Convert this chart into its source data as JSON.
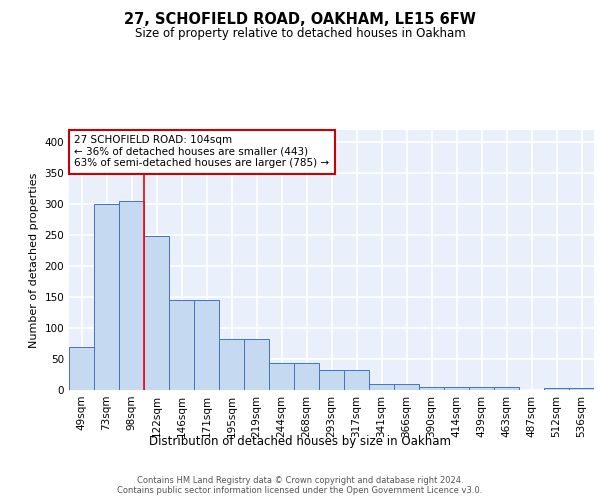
{
  "title1": "27, SCHOFIELD ROAD, OAKHAM, LE15 6FW",
  "title2": "Size of property relative to detached houses in Oakham",
  "xlabel": "Distribution of detached houses by size in Oakham",
  "ylabel": "Number of detached properties",
  "categories": [
    "49sqm",
    "73sqm",
    "98sqm",
    "122sqm",
    "146sqm",
    "171sqm",
    "195sqm",
    "219sqm",
    "244sqm",
    "268sqm",
    "293sqm",
    "317sqm",
    "341sqm",
    "366sqm",
    "390sqm",
    "414sqm",
    "439sqm",
    "463sqm",
    "487sqm",
    "512sqm",
    "536sqm"
  ],
  "bar_heights": [
    70,
    300,
    305,
    248,
    145,
    145,
    82,
    82,
    44,
    44,
    33,
    33,
    9,
    9,
    5,
    5,
    5,
    5,
    0,
    3,
    3
  ],
  "bar_color": "#c5d9f1",
  "bar_edge_color": "#4472c4",
  "bg_color": "#eaf0fb",
  "grid_color": "#ffffff",
  "red_line_x": 2.5,
  "annotation_title": "27 SCHOFIELD ROAD: 104sqm",
  "annotation_line1": "← 36% of detached houses are smaller (443)",
  "annotation_line2": "63% of semi-detached houses are larger (785) →",
  "footer": "Contains HM Land Registry data © Crown copyright and database right 2024.\nContains public sector information licensed under the Open Government Licence v3.0.",
  "ylim": [
    0,
    420
  ],
  "yticks": [
    0,
    50,
    100,
    150,
    200,
    250,
    300,
    350,
    400
  ]
}
